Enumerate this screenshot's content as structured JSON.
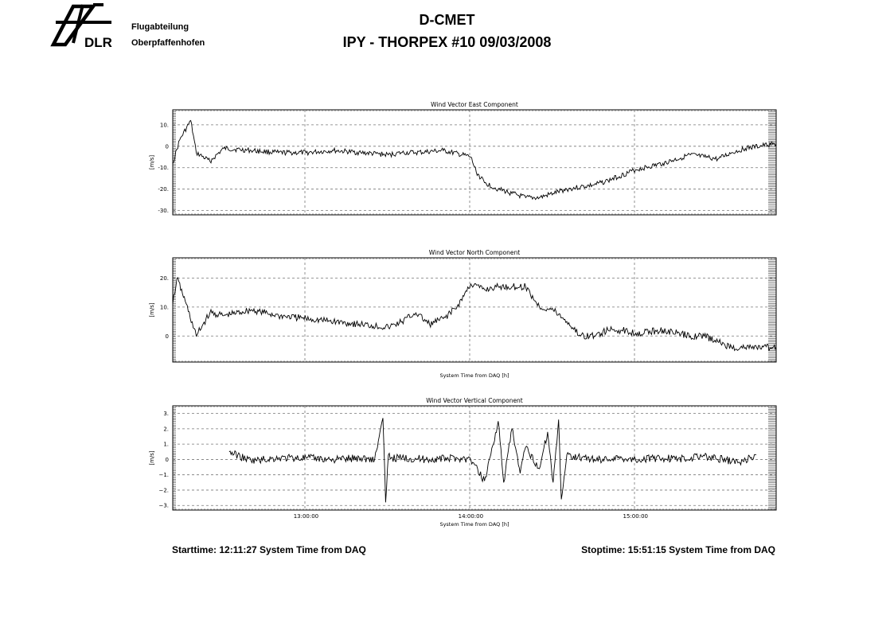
{
  "header": {
    "logo_text": "DLR",
    "dept_line1": "Flugabteilung",
    "dept_line2": "Oberpfaffenhofen",
    "title": "D-CMET",
    "subtitle": "IPY - THORPEX #10   09/03/2008"
  },
  "footer": {
    "start": "Starttime: 12:11:27 System Time from DAQ",
    "stop": "Stoptime: 15:51:15 System Time from DAQ"
  },
  "chart_data": [
    {
      "type": "line",
      "title": "Wind Vector East Component",
      "ylabel": "[m/s]",
      "xlabel": "",
      "xlim": [
        "12:11:27",
        "15:51:15"
      ],
      "ylim": [
        -32,
        17
      ],
      "yticks": [
        10,
        0,
        -10,
        -20,
        -30
      ],
      "ytick_labels": [
        "10.",
        "0",
        "-10.",
        "-20.",
        "-30."
      ],
      "xtick_labels": [],
      "grid": true,
      "series": [
        {
          "x": [
            "12:11:27",
            "12:14",
            "12:18",
            "12:20",
            "12:25",
            "12:30",
            "12:40",
            "12:50",
            "13:00",
            "13:10",
            "13:20",
            "13:30",
            "13:35",
            "13:40",
            "13:50",
            "14:00",
            "14:02",
            "14:05",
            "14:10",
            "14:15",
            "14:20",
            "14:25",
            "14:30",
            "14:35",
            "14:40",
            "14:45",
            "14:50",
            "15:00",
            "15:10",
            "15:20",
            "15:25",
            "15:30",
            "15:35",
            "15:40",
            "15:50",
            "15:51:15"
          ],
          "y": [
            -8,
            3,
            12,
            -3,
            -7,
            -1,
            -2,
            -3,
            -3,
            -2,
            -3,
            -4,
            -3,
            -3,
            -2,
            -5,
            -12,
            -17,
            -20,
            -22,
            -24,
            -24,
            -22,
            -20,
            -19,
            -18,
            -16,
            -11,
            -8,
            -4,
            -5,
            -6,
            -3,
            -1,
            1,
            1
          ]
        }
      ]
    },
    {
      "type": "line",
      "title": "Wind Vector North Component",
      "ylabel": "[m/s]",
      "xlabel": "System Time from DAQ [h]",
      "xlim": [
        "12:11:27",
        "15:51:15"
      ],
      "ylim": [
        -9,
        27
      ],
      "yticks": [
        20,
        10,
        0
      ],
      "ytick_labels": [
        "20.",
        "10.",
        "0"
      ],
      "xtick_labels": [],
      "grid": true,
      "series": [
        {
          "x": [
            "12:11:27",
            "12:13",
            "12:16",
            "12:20",
            "12:25",
            "12:30",
            "12:40",
            "12:50",
            "13:00",
            "13:10",
            "13:20",
            "13:30",
            "13:35",
            "13:40",
            "13:45",
            "13:50",
            "13:55",
            "14:00",
            "14:05",
            "14:10",
            "14:15",
            "14:20",
            "14:25",
            "14:30",
            "14:35",
            "14:40",
            "14:45",
            "14:50",
            "14:55",
            "15:00",
            "15:10",
            "15:20",
            "15:25",
            "15:30",
            "15:35",
            "15:40",
            "15:50",
            "15:51:15"
          ],
          "y": [
            11,
            20,
            12,
            0,
            8,
            7,
            9,
            7,
            6,
            5,
            4,
            3,
            5,
            8,
            4,
            6,
            10,
            18,
            16,
            17,
            17,
            17,
            10,
            9,
            5,
            0,
            0,
            2,
            2,
            1,
            2,
            0,
            0,
            -2,
            -4,
            -4,
            -4,
            -4
          ]
        }
      ]
    },
    {
      "type": "line",
      "title": "Wind Vector Vertical Component",
      "ylabel": "[m/s]",
      "xlabel": "System Time from DAQ [h]",
      "xlim": [
        "12:11:27",
        "15:51:15"
      ],
      "ylim": [
        -3.3,
        3.5
      ],
      "yticks": [
        3,
        2,
        1,
        0,
        -1,
        -2,
        -3
      ],
      "ytick_labels": [
        "3.",
        "2.",
        "1.",
        "0",
        "−1.",
        "−2.",
        "−3."
      ],
      "xticks": [
        "13:00:00",
        "14:00:00",
        "15:00:00"
      ],
      "xtick_labels": [
        "13:00:00",
        "14:00:00",
        "15:00:00"
      ],
      "grid": true,
      "series": [
        {
          "x": [
            "12:32",
            "12:40",
            "12:50",
            "13:00",
            "13:10",
            "13:20",
            "13:25",
            "13:28",
            "13:29",
            "13:30",
            "13:31",
            "13:35",
            "13:45",
            "13:55",
            "14:00",
            "14:05",
            "14:08",
            "14:10",
            "14:12",
            "14:15",
            "14:18",
            "14:20",
            "14:25",
            "14:28",
            "14:30",
            "14:32",
            "14:33",
            "14:35",
            "14:45",
            "14:55",
            "15:00",
            "15:10",
            "15:20",
            "15:22",
            "15:38",
            "15:44"
          ],
          "y": [
            0.5,
            -0.1,
            0.1,
            0.1,
            0.0,
            0.1,
            0.0,
            2.7,
            -2.8,
            0.3,
            0.1,
            0.1,
            0.0,
            0.1,
            0.0,
            -1.4,
            0.9,
            2.5,
            -1.5,
            2.0,
            -0.9,
            0.8,
            -0.6,
            1.8,
            -1.5,
            2.6,
            -2.6,
            0.3,
            0.0,
            0.1,
            0.0,
            0.1,
            0.0,
            0.3,
            -0.2,
            0.3
          ]
        }
      ]
    }
  ]
}
